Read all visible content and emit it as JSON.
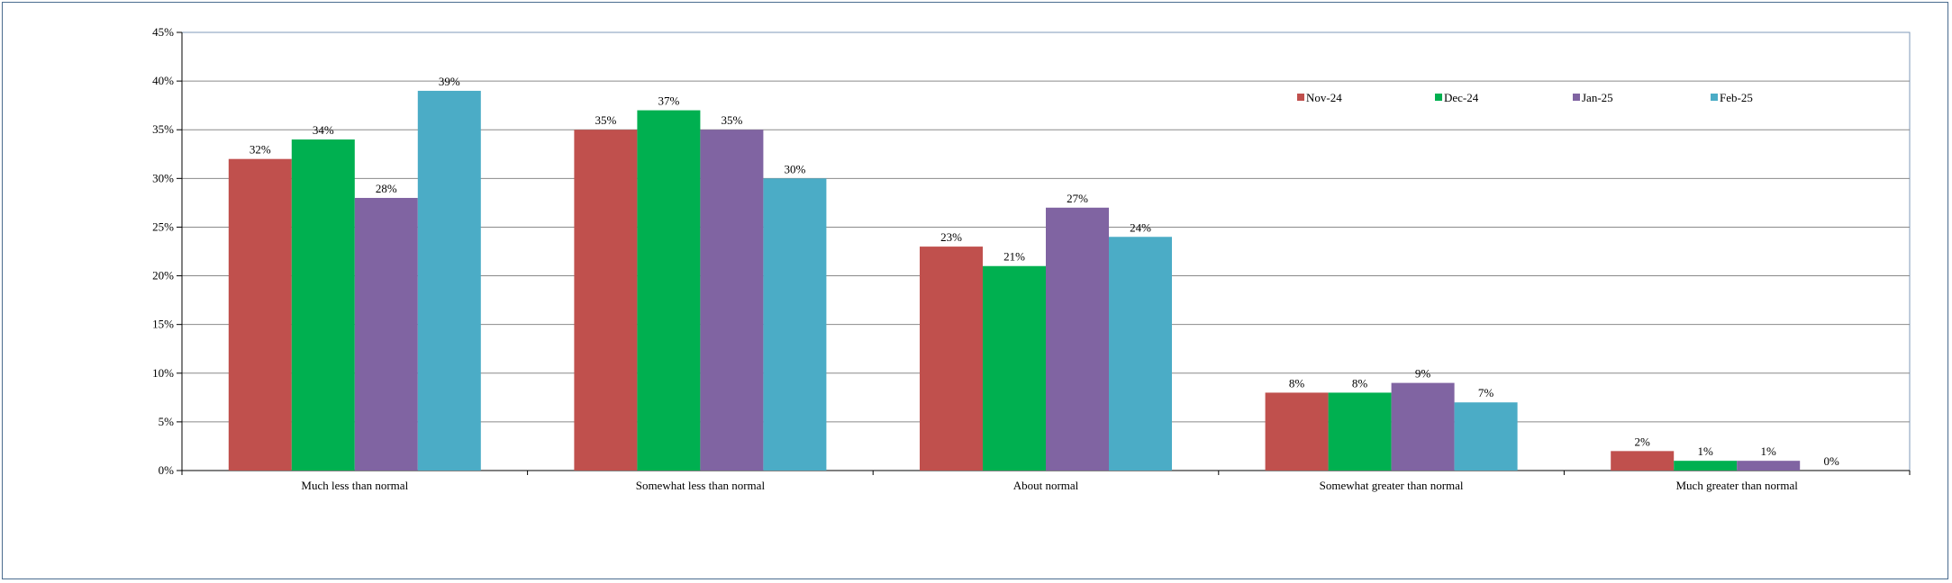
{
  "chart_data": {
    "type": "bar",
    "categories": [
      "Much less than normal",
      "Somewhat less than normal",
      "About normal",
      "Somewhat greater than normal",
      "Much greater than normal"
    ],
    "series": [
      {
        "name": "Nov-24",
        "color": "#c0504d",
        "values": [
          32,
          35,
          23,
          8,
          2
        ],
        "labels": [
          "32%",
          "35%",
          "23%",
          "8%",
          "2%"
        ]
      },
      {
        "name": "Dec-24",
        "color": "#00b050",
        "values": [
          34,
          37,
          21,
          8,
          1
        ],
        "labels": [
          "34%",
          "37%",
          "21%",
          "8%",
          "1%"
        ]
      },
      {
        "name": "Jan-25",
        "color": "#8064a2",
        "values": [
          28,
          35,
          27,
          9,
          1
        ],
        "labels": [
          "28%",
          "35%",
          "27%",
          "9%",
          "1%"
        ]
      },
      {
        "name": "Feb-25",
        "color": "#4bacc6",
        "values": [
          39,
          30,
          24,
          7,
          0
        ],
        "labels": [
          "39%",
          "30%",
          "24%",
          "7%",
          "0%"
        ]
      }
    ],
    "y_ticks": [
      "0%",
      "5%",
      "10%",
      "15%",
      "20%",
      "25%",
      "30%",
      "35%",
      "40%",
      "45%"
    ],
    "ylim": [
      0,
      45
    ],
    "grid": true,
    "legend_position": "top-right",
    "title": "",
    "xlabel": "",
    "ylabel": ""
  }
}
